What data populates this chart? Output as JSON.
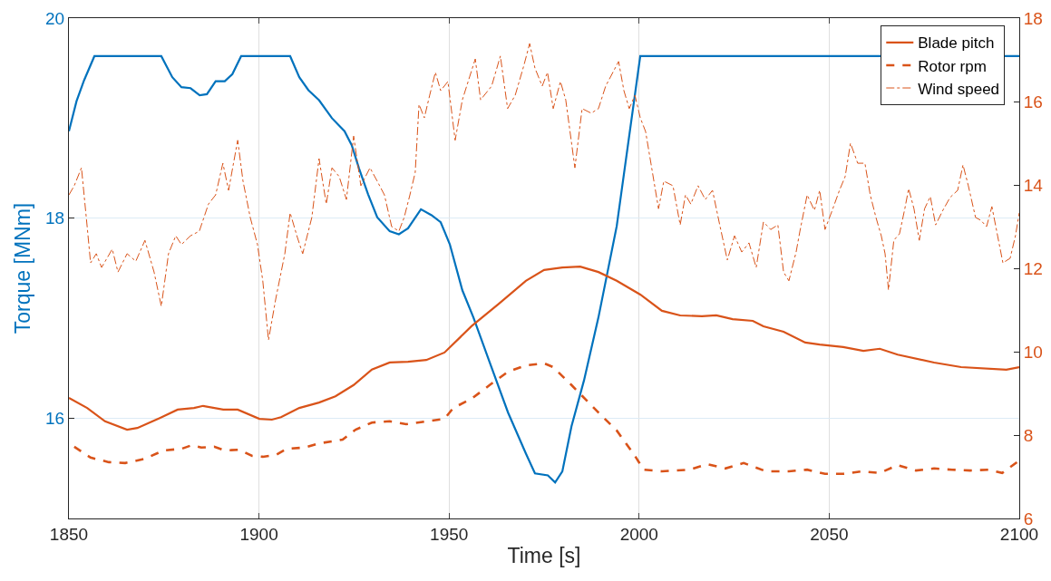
{
  "chart_data": {
    "type": "line",
    "xlabel": "Time [s]",
    "ylabel": "Torque [MNm]",
    "xlim": [
      1850,
      2100
    ],
    "xticks": [
      1850,
      1900,
      1950,
      2000,
      2050,
      2100
    ],
    "ylim": [
      15,
      20
    ],
    "yticks": [
      16,
      18,
      20
    ],
    "y2lim": [
      6,
      18
    ],
    "y2ticks": [
      6,
      8,
      10,
      12,
      14,
      16,
      18
    ],
    "grid": true,
    "legend": "top right",
    "marker": "none",
    "series": [
      {
        "color": "#0072bd",
        "line_style": "solid",
        "x": [
          1850.0,
          1852.0,
          1854.0,
          1856.7,
          1874.3,
          1877.2,
          1879.6,
          1882.0,
          1884.4,
          1886.3,
          1888.6,
          1891.0,
          1893.0,
          1895.3,
          1908.2,
          1910.6,
          1913.0,
          1915.8,
          1919.2,
          1922.5,
          1924.4,
          1926.3,
          1928.7,
          1931.1,
          1934.4,
          1936.8,
          1939.2,
          1942.6,
          1945.4,
          1947.8,
          1950.2,
          1953.5,
          1956.4,
          1960.7,
          1965.5,
          1970.2,
          1972.6,
          1976.0,
          1977.9,
          1979.8,
          1982.2,
          1985.5,
          1989.3,
          1994.1,
          2000.3,
          2100.0
        ],
        "values": [
          18.87,
          19.17,
          19.38,
          19.62,
          19.62,
          19.41,
          19.31,
          19.3,
          19.23,
          19.24,
          19.37,
          19.37,
          19.44,
          19.62,
          19.62,
          19.41,
          19.28,
          19.18,
          19.0,
          18.87,
          18.73,
          18.5,
          18.24,
          18.01,
          17.87,
          17.84,
          17.9,
          18.09,
          18.03,
          17.96,
          17.74,
          17.28,
          17.01,
          16.56,
          16.06,
          15.65,
          15.45,
          15.43,
          15.36,
          15.47,
          15.92,
          16.38,
          17.01,
          17.92,
          19.62,
          19.62
        ]
      },
      {
        "name": "Blade pitch",
        "axis": "y2",
        "color": "#d95319",
        "line_style": "solid",
        "x": [
          1850.0,
          1854.8,
          1859.5,
          1865.3,
          1868.0,
          1873.9,
          1878.6,
          1882.9,
          1885.3,
          1890.6,
          1894.4,
          1900.1,
          1903.4,
          1905.8,
          1910.6,
          1915.8,
          1920.1,
          1924.9,
          1929.7,
          1934.4,
          1939.2,
          1944.0,
          1948.8,
          1955.9,
          1963.1,
          1970.2,
          1975.0,
          1979.8,
          1984.5,
          1989.3,
          1994.1,
          2000.3,
          2006.0,
          2010.8,
          2016.5,
          2020.3,
          2024.6,
          2029.9,
          2032.7,
          2038.0,
          2043.7,
          2047.5,
          2053.7,
          2059.0,
          2063.3,
          2068.0,
          2077.6,
          2084.7,
          2096.6,
          2100.0
        ],
        "values": [
          8.89,
          8.65,
          8.33,
          8.13,
          8.17,
          8.41,
          8.61,
          8.65,
          8.7,
          8.61,
          8.61,
          8.39,
          8.37,
          8.43,
          8.65,
          8.78,
          8.93,
          9.2,
          9.57,
          9.74,
          9.76,
          9.8,
          9.98,
          10.61,
          11.15,
          11.7,
          11.96,
          12.02,
          12.04,
          11.91,
          11.7,
          11.37,
          10.98,
          10.87,
          10.85,
          10.87,
          10.78,
          10.74,
          10.61,
          10.48,
          10.22,
          10.17,
          10.11,
          10.02,
          10.07,
          9.93,
          9.74,
          9.63,
          9.57,
          9.63
        ]
      },
      {
        "name": "Rotor rpm",
        "axis": "y2",
        "color": "#d95319",
        "line_style": "dashed",
        "x": [
          1851.4,
          1855.7,
          1860.5,
          1864.8,
          1870.0,
          1874.8,
          1879.6,
          1882.4,
          1884.8,
          1888.2,
          1891.0,
          1894.8,
          1898.2,
          1901.0,
          1904.4,
          1907.3,
          1912.0,
          1915.8,
          1922.0,
          1925.4,
          1929.7,
          1934.4,
          1938.7,
          1944.0,
          1948.8,
          1951.1,
          1955.9,
          1960.7,
          1965.5,
          1970.2,
          1975.0,
          1977.4,
          1982.2,
          1989.3,
          1994.1,
          1998.9,
          2001.2,
          2006.0,
          2013.2,
          2017.9,
          2022.7,
          2027.5,
          2033.4,
          2039.4,
          2044.2,
          2048.9,
          2053.7,
          2058.5,
          2063.3,
          2068.0,
          2072.8,
          2077.6,
          2082.3,
          2087.1,
          2091.9,
          2095.5,
          2100.0
        ],
        "values": [
          7.72,
          7.46,
          7.35,
          7.33,
          7.43,
          7.63,
          7.67,
          7.76,
          7.7,
          7.72,
          7.63,
          7.65,
          7.5,
          7.48,
          7.52,
          7.67,
          7.7,
          7.8,
          7.89,
          8.13,
          8.3,
          8.33,
          8.26,
          8.33,
          8.39,
          8.65,
          8.87,
          9.2,
          9.52,
          9.67,
          9.72,
          9.63,
          9.2,
          8.54,
          8.11,
          7.5,
          7.17,
          7.13,
          7.17,
          7.3,
          7.2,
          7.33,
          7.13,
          7.13,
          7.17,
          7.07,
          7.07,
          7.13,
          7.09,
          7.28,
          7.15,
          7.2,
          7.17,
          7.15,
          7.17,
          7.09,
          7.39
        ]
      },
      {
        "name": "Wind speed",
        "axis": "y2",
        "color": "#d95319",
        "line_style": "dashdot",
        "x": [
          1850.0,
          1851.4,
          1853.3,
          1854.8,
          1855.7,
          1857.2,
          1858.6,
          1861.4,
          1862.9,
          1865.3,
          1867.6,
          1870.0,
          1872.4,
          1874.3,
          1876.2,
          1878.1,
          1879.6,
          1882.0,
          1884.3,
          1886.7,
          1888.6,
          1890.5,
          1892.0,
          1894.4,
          1895.8,
          1897.7,
          1899.6,
          1901.0,
          1902.5,
          1904.4,
          1906.8,
          1908.2,
          1910.1,
          1911.5,
          1913.9,
          1915.8,
          1917.7,
          1919.2,
          1921.1,
          1923.0,
          1924.9,
          1926.8,
          1929.2,
          1931.1,
          1933.0,
          1934.9,
          1936.8,
          1938.2,
          1939.7,
          1941.1,
          1942.1,
          1943.5,
          1944.9,
          1946.4,
          1947.8,
          1949.7,
          1951.6,
          1953.5,
          1955.4,
          1956.9,
          1958.3,
          1961.2,
          1963.5,
          1965.4,
          1967.4,
          1969.7,
          1971.2,
          1972.6,
          1974.5,
          1975.9,
          1977.4,
          1979.3,
          1980.7,
          1983.1,
          1985.0,
          1987.4,
          1989.3,
          1991.2,
          1994.6,
          1996.0,
          1997.4,
          1998.9,
          2000.3,
          2001.7,
          2003.1,
          2005.1,
          2006.5,
          2008.9,
          2010.8,
          2012.2,
          2013.6,
          2015.5,
          2017.4,
          2019.3,
          2021.3,
          2023.2,
          2025.1,
          2027.0,
          2028.9,
          2030.8,
          2032.7,
          2034.6,
          2036.5,
          2038.0,
          2039.4,
          2041.3,
          2042.3,
          2044.2,
          2046.1,
          2047.5,
          2048.9,
          2050.8,
          2052.7,
          2054.2,
          2055.6,
          2057.5,
          2059.4,
          2060.8,
          2062.3,
          2063.7,
          2064.7,
          2065.6,
          2067.0,
          2068.5,
          2069.9,
          2070.9,
          2072.3,
          2073.7,
          2075.1,
          2076.6,
          2078.0,
          2079.9,
          2081.8,
          2083.8,
          2085.2,
          2086.6,
          2088.5,
          2089.9,
          2091.4,
          2092.8,
          2094.3,
          2095.7,
          2097.6,
          2099.0,
          2100.0
        ],
        "values": [
          13.76,
          13.98,
          14.41,
          13.0,
          12.13,
          12.35,
          12.02,
          12.46,
          11.91,
          12.35,
          12.17,
          12.67,
          11.91,
          11.09,
          12.35,
          12.78,
          12.57,
          12.78,
          12.89,
          13.54,
          13.76,
          14.52,
          13.87,
          15.07,
          14.09,
          13.22,
          12.57,
          11.7,
          10.28,
          11.26,
          12.35,
          13.33,
          12.74,
          12.35,
          13.22,
          14.63,
          13.54,
          14.41,
          14.2,
          13.65,
          15.17,
          13.98,
          14.41,
          14.09,
          13.76,
          13.0,
          12.89,
          13.22,
          13.76,
          14.3,
          15.93,
          15.61,
          16.15,
          16.7,
          16.26,
          16.48,
          15.07,
          16.04,
          16.59,
          17.02,
          16.04,
          16.37,
          17.09,
          15.83,
          16.15,
          16.87,
          17.39,
          16.8,
          16.37,
          16.7,
          15.83,
          16.48,
          16.04,
          14.41,
          15.83,
          15.72,
          15.83,
          16.37,
          16.96,
          16.26,
          15.83,
          16.15,
          15.61,
          15.28,
          14.52,
          13.43,
          14.09,
          13.98,
          13.04,
          13.76,
          13.54,
          13.98,
          13.65,
          13.87,
          13.0,
          12.2,
          12.78,
          12.39,
          12.61,
          12.02,
          13.11,
          12.93,
          13.04,
          11.91,
          11.7,
          12.39,
          12.89,
          13.76,
          13.39,
          13.87,
          12.93,
          13.39,
          13.87,
          14.2,
          15.0,
          14.52,
          14.52,
          13.76,
          13.22,
          12.78,
          12.35,
          11.48,
          12.67,
          12.83,
          13.43,
          13.91,
          13.43,
          12.67,
          13.43,
          13.72,
          13.04,
          13.39,
          13.7,
          13.87,
          14.48,
          13.98,
          13.22,
          13.15,
          13.0,
          13.48,
          12.78,
          12.13,
          12.24,
          12.78,
          13.33
        ]
      }
    ]
  }
}
